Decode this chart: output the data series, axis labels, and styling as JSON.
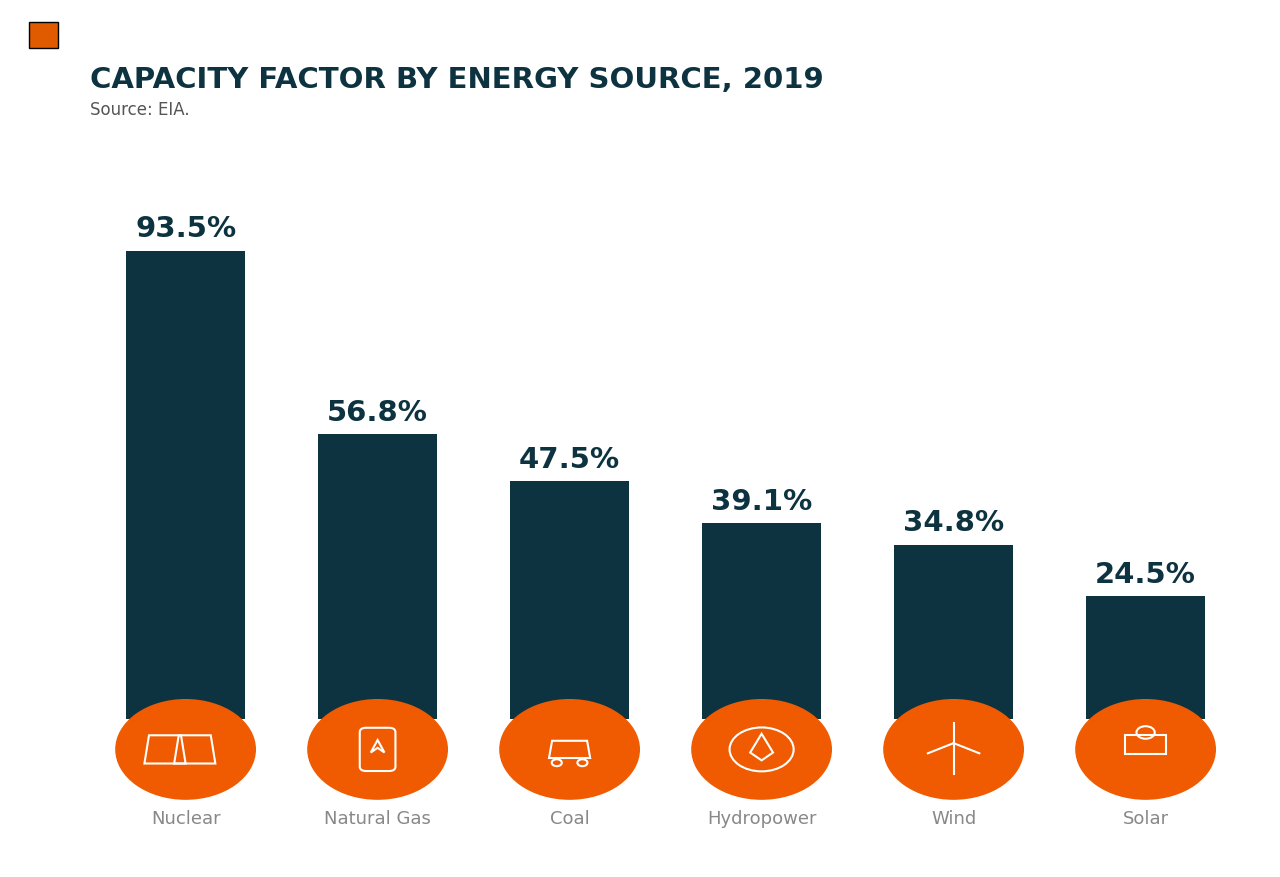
{
  "title": "CAPACITY FACTOR BY ENERGY SOURCE, 2019",
  "source": "Source: EIA.",
  "categories": [
    "Nuclear",
    "Natural Gas",
    "Coal",
    "Hydropower",
    "Wind",
    "Solar"
  ],
  "values": [
    93.5,
    56.8,
    47.5,
    39.1,
    34.8,
    24.5
  ],
  "labels": [
    "93.5%",
    "56.8%",
    "47.5%",
    "39.1%",
    "34.8%",
    "24.5%"
  ],
  "bar_color": "#0d3340",
  "icon_color": "#f05a00",
  "background_color": "#ffffff",
  "title_color": "#0d3340",
  "source_color": "#555555",
  "label_color": "#0d3340",
  "cat_label_color": "#888888",
  "accent_color": "#e05a00",
  "title_fontsize": 21,
  "source_fontsize": 12,
  "label_fontsize": 21,
  "cat_fontsize": 13,
  "ylim": [
    0,
    105
  ],
  "bar_width": 0.62
}
